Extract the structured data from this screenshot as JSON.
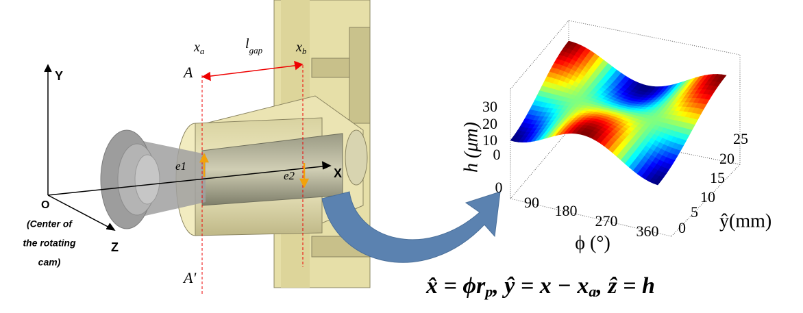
{
  "left_figure": {
    "axes": {
      "y": "Y",
      "x": "X",
      "z": "Z",
      "origin": "O",
      "origin_note": [
        "(Center of",
        "the rotating",
        "cam)"
      ]
    },
    "x_a": {
      "base": "x",
      "sub": "a"
    },
    "l_gap": {
      "base": "l",
      "sub": "gap"
    },
    "x_b": {
      "base": "x",
      "sub": "b"
    },
    "section_top": "A",
    "section_bottom": "A'",
    "e1": "e1",
    "e2": "e2"
  },
  "surface_plot": {
    "z_label": "h (μm)",
    "x_label": "ϕ (°)",
    "y_label": "ŷ(mm)",
    "z_ticks": [
      "0",
      "10",
      "20",
      "30"
    ],
    "x_ticks": [
      "0",
      "90",
      "180",
      "270",
      "360"
    ],
    "y_ticks": [
      "0",
      "5",
      "10",
      "15",
      "20",
      "25"
    ]
  },
  "formula": [
    "x̂ = ϕr",
    "p",
    ", ŷ = x − x",
    "a",
    ", ẑ = h"
  ]
}
